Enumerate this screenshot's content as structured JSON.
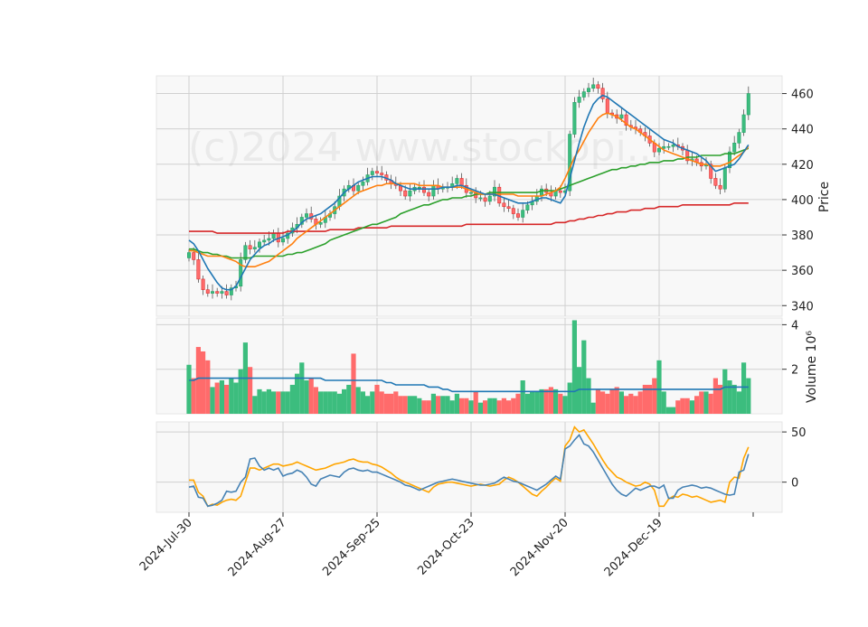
{
  "chart_data": {
    "type": "candlestick",
    "watermark": "(c)2024 www.stockopi...",
    "colors": {
      "up": "#26a269",
      "up_fill": "#3cbd7e",
      "down": "#e03131",
      "down_fill": "#ff6b6b",
      "ma_short": "#1f77b4",
      "ma_mid": "#ff7f0e",
      "ma_long": "#2ca02c",
      "ma_longest": "#d62728",
      "volume_ma": "#1f77b4",
      "osc_a": "#4682b4",
      "osc_b": "#ffa500"
    },
    "x_ticks": [
      "2024-Jul-30",
      "2024-Aug-27",
      "2024-Sep-25",
      "2024-Oct-23",
      "2024-Nov-20",
      "2024-Dec-19"
    ],
    "x_tick_index": [
      0,
      20,
      40,
      60,
      80,
      100
    ],
    "n_days": 120,
    "price_panel": {
      "ylabel": "Price",
      "ylim": [
        334,
        470
      ],
      "yticks": [
        340,
        360,
        380,
        400,
        420,
        440,
        460
      ],
      "close": [
        370,
        366,
        355,
        349,
        347,
        348,
        347,
        348,
        346,
        350,
        351,
        366,
        374,
        372,
        373,
        376,
        377,
        378,
        381,
        376,
        378,
        381,
        384,
        386,
        390,
        392,
        389,
        386,
        387,
        390,
        392,
        396,
        402,
        406,
        408,
        405,
        408,
        410,
        414,
        416,
        415,
        414,
        411,
        409,
        408,
        405,
        402,
        405,
        407,
        407,
        404,
        402,
        408,
        406,
        407,
        407,
        409,
        412,
        408,
        404,
        404,
        401,
        401,
        399,
        402,
        407,
        398,
        396,
        395,
        392,
        390,
        394,
        397,
        399,
        402,
        406,
        404,
        402,
        405,
        404,
        405,
        437,
        455,
        458,
        461,
        463,
        465,
        463,
        457,
        449,
        448,
        446,
        448,
        442,
        441,
        440,
        438,
        436,
        432,
        427,
        429,
        430,
        430,
        431,
        430,
        428,
        422,
        423,
        421,
        419,
        420,
        412,
        408,
        406,
        418,
        427,
        432,
        438,
        448,
        460
      ],
      "ma_short": [
        377,
        375,
        371,
        366,
        361,
        357,
        353,
        350,
        349,
        349,
        351,
        356,
        361,
        366,
        369,
        372,
        374,
        375,
        377,
        378,
        379,
        380,
        382,
        384,
        387,
        389,
        390,
        391,
        392,
        394,
        396,
        398,
        401,
        404,
        406,
        408,
        410,
        411,
        412,
        413,
        413,
        413,
        412,
        411,
        409,
        408,
        407,
        406,
        406,
        406,
        406,
        406,
        406,
        406,
        407,
        407,
        407,
        408,
        408,
        407,
        406,
        405,
        404,
        403,
        403,
        403,
        402,
        401,
        400,
        399,
        398,
        398,
        398,
        399,
        400,
        401,
        401,
        400,
        399,
        398,
        402,
        412,
        422,
        432,
        441,
        448,
        454,
        457,
        459,
        458,
        456,
        454,
        452,
        450,
        448,
        446,
        444,
        442,
        440,
        438,
        436,
        434,
        433,
        432,
        430,
        429,
        428,
        427,
        426,
        424,
        422,
        419,
        416,
        417,
        418,
        419,
        420,
        423,
        427,
        431
      ],
      "ma_mid": [
        371,
        371,
        370,
        369,
        368,
        368,
        368,
        368,
        367,
        366,
        365,
        363,
        362,
        362,
        362,
        363,
        364,
        365,
        367,
        369,
        371,
        373,
        375,
        378,
        380,
        382,
        384,
        386,
        388,
        390,
        392,
        394,
        396,
        398,
        400,
        402,
        404,
        405,
        406,
        407,
        408,
        408,
        409,
        409,
        409,
        409,
        409,
        409,
        409,
        408,
        408,
        408,
        408,
        408,
        407,
        407,
        407,
        407,
        407,
        406,
        405,
        404,
        403,
        403,
        403,
        403,
        403,
        403,
        403,
        403,
        402,
        402,
        402,
        402,
        402,
        402,
        403,
        404,
        405,
        407,
        412,
        418,
        424,
        428,
        433,
        438,
        442,
        446,
        448,
        449,
        448,
        447,
        445,
        443,
        441,
        440,
        438,
        436,
        434,
        432,
        430,
        428,
        427,
        426,
        425,
        424,
        423,
        422,
        421,
        420,
        420,
        419,
        419,
        419,
        420,
        421,
        423,
        425,
        427,
        430
      ],
      "ma_long": [
        372,
        372,
        371,
        370,
        370,
        369,
        369,
        368,
        368,
        367,
        367,
        367,
        367,
        367,
        368,
        368,
        368,
        368,
        368,
        368,
        368,
        369,
        369,
        370,
        370,
        371,
        372,
        373,
        374,
        375,
        377,
        378,
        379,
        380,
        381,
        382,
        383,
        384,
        385,
        386,
        386,
        387,
        388,
        389,
        390,
        392,
        393,
        394,
        395,
        396,
        397,
        397,
        398,
        399,
        400,
        400,
        401,
        401,
        401,
        402,
        402,
        403,
        403,
        403,
        404,
        404,
        404,
        404,
        404,
        404,
        404,
        404,
        404,
        404,
        404,
        405,
        405,
        405,
        405,
        406,
        407,
        408,
        409,
        410,
        411,
        412,
        413,
        414,
        415,
        416,
        417,
        417,
        418,
        418,
        419,
        419,
        420,
        420,
        421,
        421,
        421,
        422,
        422,
        422,
        423,
        423,
        424,
        424,
        424,
        425,
        425,
        425,
        425,
        425,
        426,
        426,
        426,
        427,
        428,
        429
      ],
      "ma_longest": [
        382,
        382,
        382,
        382,
        382,
        382,
        381,
        381,
        381,
        381,
        381,
        381,
        381,
        381,
        381,
        381,
        381,
        381,
        381,
        381,
        381,
        382,
        382,
        382,
        382,
        382,
        382,
        382,
        382,
        382,
        383,
        383,
        383,
        383,
        383,
        383,
        384,
        384,
        384,
        384,
        384,
        384,
        384,
        385,
        385,
        385,
        385,
        385,
        385,
        385,
        385,
        385,
        385,
        385,
        385,
        385,
        385,
        385,
        385,
        386,
        386,
        386,
        386,
        386,
        386,
        386,
        386,
        386,
        386,
        386,
        386,
        386,
        386,
        386,
        386,
        386,
        386,
        386,
        387,
        387,
        387,
        388,
        388,
        389,
        389,
        390,
        390,
        391,
        391,
        392,
        392,
        393,
        393,
        393,
        394,
        394,
        394,
        395,
        395,
        395,
        396,
        396,
        396,
        396,
        396,
        397,
        397,
        397,
        397,
        397,
        397,
        397,
        397,
        397,
        397,
        397,
        398,
        398,
        398,
        398
      ]
    },
    "volume_panel": {
      "ylabel": "Volume  10⁶",
      "ylim": [
        0,
        4.3
      ],
      "yticks": [
        2,
        4
      ],
      "values": [
        2.2,
        1.6,
        3.0,
        2.8,
        2.4,
        1.2,
        1.4,
        1.5,
        1.3,
        1.6,
        1.4,
        2.0,
        3.2,
        2.1,
        0.8,
        1.1,
        1.0,
        1.1,
        1.0,
        1.0,
        1.0,
        1.0,
        1.3,
        1.8,
        2.3,
        1.5,
        1.6,
        1.2,
        1.0,
        1.0,
        1.0,
        1.0,
        0.9,
        1.1,
        1.3,
        2.7,
        1.2,
        1.0,
        0.8,
        1.0,
        1.3,
        1.0,
        0.9,
        0.9,
        1.0,
        0.8,
        0.8,
        0.8,
        0.8,
        0.7,
        0.6,
        0.6,
        0.9,
        0.8,
        0.8,
        0.8,
        0.6,
        0.9,
        0.7,
        0.7,
        0.6,
        1.0,
        0.5,
        0.6,
        0.7,
        0.7,
        0.6,
        0.7,
        0.6,
        0.7,
        0.9,
        1.5,
        0.9,
        1.0,
        1.0,
        1.1,
        1.1,
        1.2,
        1.1,
        0.9,
        0.8,
        1.4,
        4.2,
        2.1,
        3.3,
        1.6,
        0.5,
        1.1,
        1.0,
        0.9,
        1.1,
        1.2,
        1.0,
        0.8,
        0.9,
        0.8,
        1.0,
        1.3,
        1.3,
        1.6,
        2.4,
        1.0,
        0.3,
        0.3,
        0.6,
        0.7,
        0.7,
        0.6,
        0.8,
        1.0,
        1.0,
        0.9,
        1.6,
        1.3,
        2.0,
        1.5,
        1.3,
        1.0,
        2.3,
        1.6
      ],
      "ma": [
        1.5,
        1.5,
        1.6,
        1.6,
        1.6,
        1.6,
        1.6,
        1.6,
        1.6,
        1.6,
        1.6,
        1.6,
        1.6,
        1.6,
        1.6,
        1.6,
        1.6,
        1.6,
        1.6,
        1.6,
        1.6,
        1.6,
        1.6,
        1.6,
        1.6,
        1.6,
        1.6,
        1.6,
        1.6,
        1.5,
        1.5,
        1.5,
        1.5,
        1.5,
        1.5,
        1.5,
        1.5,
        1.5,
        1.5,
        1.5,
        1.5,
        1.5,
        1.4,
        1.4,
        1.3,
        1.3,
        1.3,
        1.3,
        1.3,
        1.3,
        1.3,
        1.2,
        1.2,
        1.2,
        1.1,
        1.1,
        1.0,
        1.0,
        1.0,
        1.0,
        1.0,
        1.0,
        1.0,
        1.0,
        1.0,
        1.0,
        1.0,
        1.0,
        1.0,
        1.0,
        1.0,
        1.0,
        1.0,
        1.0,
        1.0,
        1.0,
        1.0,
        1.0,
        1.0,
        1.0,
        1.0,
        1.0,
        1.0,
        1.1,
        1.1,
        1.1,
        1.1,
        1.1,
        1.1,
        1.1,
        1.1,
        1.1,
        1.1,
        1.1,
        1.1,
        1.1,
        1.1,
        1.1,
        1.1,
        1.1,
        1.1,
        1.1,
        1.1,
        1.1,
        1.1,
        1.1,
        1.1,
        1.1,
        1.1,
        1.1,
        1.1,
        1.1,
        1.1,
        1.1,
        1.2,
        1.2,
        1.2,
        1.2,
        1.2,
        1.2
      ]
    },
    "osc_panel": {
      "ylim": [
        -30,
        60
      ],
      "yticks": [
        0,
        50
      ],
      "series_a": [
        -5,
        -4,
        -15,
        -16,
        -24,
        -23,
        -21,
        -18,
        -9,
        -10,
        -9,
        0,
        5,
        23,
        24,
        16,
        12,
        14,
        12,
        14,
        6,
        8,
        9,
        12,
        10,
        5,
        -2,
        -4,
        3,
        5,
        7,
        6,
        5,
        10,
        13,
        14,
        12,
        11,
        12,
        10,
        10,
        8,
        6,
        4,
        2,
        0,
        -3,
        -4,
        -6,
        -8,
        -6,
        -4,
        -2,
        0,
        1,
        2,
        3,
        2,
        1,
        0,
        -1,
        -2,
        -3,
        -3,
        -2,
        -1,
        2,
        5,
        3,
        1,
        0,
        -2,
        -4,
        -6,
        -8,
        -5,
        -2,
        2,
        6,
        3,
        33,
        36,
        42,
        47,
        38,
        36,
        30,
        22,
        14,
        6,
        -2,
        -8,
        -12,
        -14,
        -10,
        -6,
        -8,
        -6,
        -4,
        -4,
        -6,
        -3,
        -16,
        -16,
        -8,
        -5,
        -4,
        -3,
        -4,
        -6,
        -5,
        -6,
        -8,
        -10,
        -12,
        -13,
        -12,
        10,
        12,
        28
      ],
      "series_b": [
        2,
        2,
        -10,
        -14,
        -24,
        -22,
        -23,
        -20,
        -18,
        -17,
        -18,
        -14,
        0,
        14,
        14,
        12,
        14,
        16,
        18,
        18,
        16,
        17,
        18,
        20,
        18,
        16,
        14,
        12,
        13,
        14,
        16,
        18,
        19,
        20,
        22,
        23,
        21,
        20,
        20,
        18,
        17,
        15,
        12,
        9,
        5,
        2,
        0,
        -2,
        -4,
        -6,
        -8,
        -10,
        -5,
        -2,
        -1,
        0,
        0,
        -1,
        -2,
        -3,
        -4,
        -3,
        -2,
        -3,
        -4,
        -3,
        -2,
        2,
        5,
        3,
        0,
        -4,
        -8,
        -12,
        -14,
        -9,
        -5,
        0,
        4,
        1,
        36,
        42,
        55,
        50,
        52,
        45,
        38,
        30,
        22,
        15,
        10,
        5,
        3,
        0,
        -2,
        -4,
        -3,
        0,
        -2,
        -8,
        -24,
        -24,
        -17,
        -14,
        -15,
        -12,
        -13,
        -15,
        -14,
        -16,
        -18,
        -20,
        -19,
        -18,
        -20,
        0,
        5,
        4,
        24,
        35
      ]
    }
  }
}
